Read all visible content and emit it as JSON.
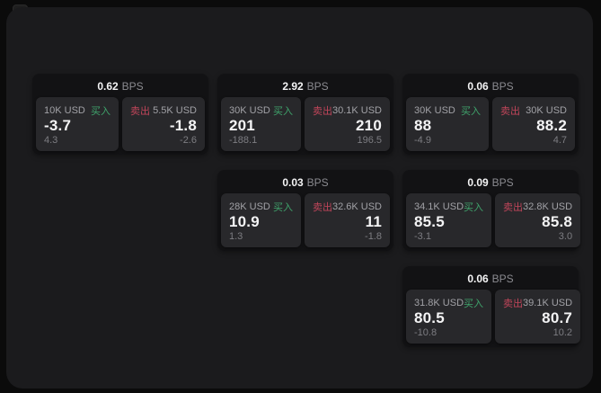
{
  "colors": {
    "background": "#0b0b0b",
    "panel": "#1b1b1d",
    "card": "#121214",
    "tile": "#28282b",
    "text_primary": "#f4f4f5",
    "text_secondary": "#a1a1a6",
    "text_tertiary": "#7d7d82",
    "text_muted": "#8b8b90",
    "buy_green": "#3fa36b",
    "sell_red": "#c0455a"
  },
  "icons": {
    "corner_glyph": "window-corner-icon"
  },
  "labels": {
    "bps_suffix": "BPS",
    "buy": "买入",
    "sell": "卖出"
  },
  "cards": [
    {
      "row": 0,
      "col": 0,
      "bps": "0.62",
      "buy": {
        "amount": "10K USD",
        "price": "-3.7",
        "delta": "4.3"
      },
      "sell": {
        "amount": "5.5K USD",
        "price": "-1.8",
        "delta": "-2.6"
      }
    },
    {
      "row": 0,
      "col": 1,
      "bps": "2.92",
      "buy": {
        "amount": "30K USD",
        "price": "201",
        "delta": "-188.1"
      },
      "sell": {
        "amount": "30.1K USD",
        "price": "210",
        "delta": "196.5"
      }
    },
    {
      "row": 0,
      "col": 2,
      "bps": "0.06",
      "buy": {
        "amount": "30K USD",
        "price": "88",
        "delta": "-4.9"
      },
      "sell": {
        "amount": "30K USD",
        "price": "88.2",
        "delta": "4.7"
      }
    },
    {
      "row": 1,
      "col": 1,
      "bps": "0.03",
      "buy": {
        "amount": "28K USD",
        "price": "10.9",
        "delta": "1.3"
      },
      "sell": {
        "amount": "32.6K USD",
        "price": "11",
        "delta": "-1.8"
      }
    },
    {
      "row": 1,
      "col": 2,
      "bps": "0.09",
      "buy": {
        "amount": "34.1K USD",
        "price": "85.5",
        "delta": "-3.1"
      },
      "sell": {
        "amount": "32.8K USD",
        "price": "85.8",
        "delta": "3.0"
      }
    },
    {
      "row": 2,
      "col": 2,
      "bps": "0.06",
      "buy": {
        "amount": "31.8K USD",
        "price": "80.5",
        "delta": "-10.8"
      },
      "sell": {
        "amount": "39.1K USD",
        "price": "80.7",
        "delta": "10.2"
      }
    }
  ]
}
